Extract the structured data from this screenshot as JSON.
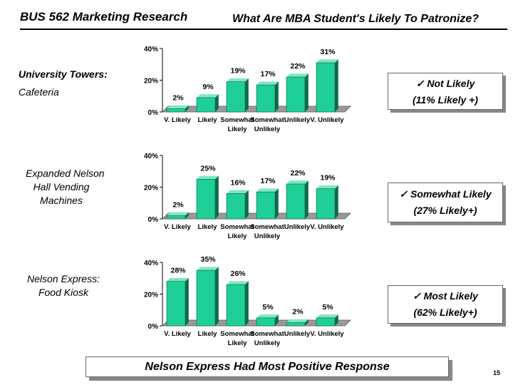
{
  "header": {
    "course_title": "BUS 562 Marketing Research",
    "question": "What Are MBA Student's Likely To Patronize?"
  },
  "sections": [
    {
      "name_line1": "University Towers:",
      "name_line2": "Cafeteria",
      "callout_line1": "✓ Not Likely",
      "callout_line2": "(11% Likely +)"
    },
    {
      "name_line1": "Expanded Nelson",
      "name_line2": "Hall Vending",
      "name_line3": "Machines",
      "callout_line1": "✓ Somewhat Likely",
      "callout_line2": "(27% Likely+)"
    },
    {
      "name_line1": "Nelson Express:",
      "name_line2": "Food Kiosk",
      "callout_line1": "✓ Most Likely",
      "callout_line2": "(62% Likely+)"
    }
  ],
  "footer": {
    "conclusion": "Nelson Express Had Most Positive Response",
    "page_number": "15"
  },
  "colors": {
    "bar_front": "#1fcf98",
    "bar_side": "#0d6b4e",
    "bar_top": "#7fe8c4",
    "floor": "#9a9a9a"
  },
  "chart_data": [
    {
      "type": "bar",
      "categories": [
        "V. Likely",
        "Likely",
        "Somewhat Likely",
        "Somewhat Unlikely",
        "Unlikely",
        "V. Unlikely"
      ],
      "values": [
        2,
        9,
        19,
        17,
        22,
        31
      ],
      "value_labels": [
        "2%",
        "9%",
        "19%",
        "17%",
        "22%",
        "31%"
      ],
      "y_ticks": [
        "0%",
        "20%",
        "40%"
      ],
      "ylim": [
        0,
        40
      ]
    },
    {
      "type": "bar",
      "categories": [
        "V. Likely",
        "Likely",
        "Somewhat Likely",
        "Somewhat Unlikely",
        "Unlikely",
        "V. Unlikely"
      ],
      "values": [
        2,
        25,
        16,
        17,
        22,
        19
      ],
      "value_labels": [
        "2%",
        "25%",
        "16%",
        "17%",
        "22%",
        "19%"
      ],
      "y_ticks": [
        "0%",
        "20%",
        "40%"
      ],
      "ylim": [
        0,
        40
      ]
    },
    {
      "type": "bar",
      "categories": [
        "V. Likely",
        "Likely",
        "Somewhat Likely",
        "Somewhat Unlikely",
        "Unlikely",
        "V. Unlikely"
      ],
      "values": [
        28,
        35,
        26,
        5,
        2,
        5
      ],
      "value_labels": [
        "28%",
        "35%",
        "26%",
        "5%",
        "2%",
        "5%"
      ],
      "y_ticks": [
        "0%",
        "20%",
        "40%"
      ],
      "ylim": [
        0,
        40
      ]
    }
  ]
}
